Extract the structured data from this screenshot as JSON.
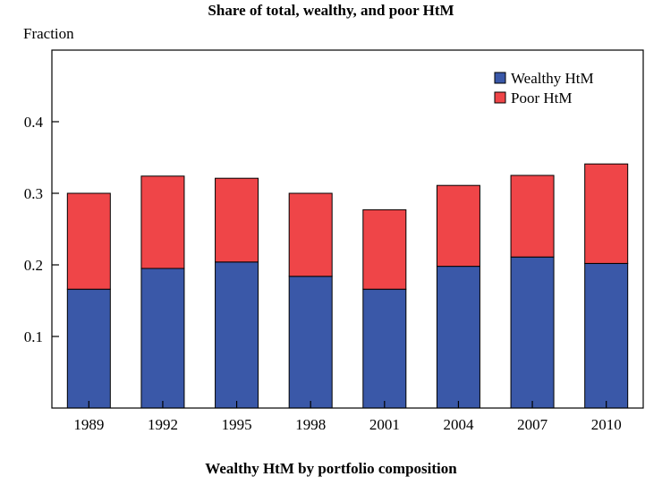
{
  "header": {
    "title": "Share of total, wealthy, and poor HtM",
    "y_axis_label": "Fraction",
    "bottom_title": "Wealthy HtM by portfolio composition"
  },
  "chart_data": {
    "type": "bar",
    "stacked": true,
    "title": "Share of total, wealthy, and poor HtM",
    "ylabel": "Fraction",
    "xlabel": "",
    "categories": [
      "1989",
      "1992",
      "1995",
      "1998",
      "2001",
      "2004",
      "2007",
      "2010"
    ],
    "series": [
      {
        "name": "Wealthy HtM",
        "color": "#3a58a8",
        "values": [
          0.166,
          0.195,
          0.204,
          0.184,
          0.166,
          0.198,
          0.211,
          0.202
        ]
      },
      {
        "name": "Poor HtM",
        "color": "#ef4548",
        "values": [
          0.134,
          0.129,
          0.117,
          0.116,
          0.111,
          0.113,
          0.114,
          0.139
        ]
      }
    ],
    "ylim": [
      0,
      0.5
    ],
    "yticks": [
      0.1,
      0.2,
      0.3,
      0.4
    ],
    "ytick_labels": [
      "0.1",
      "0.2",
      "0.3",
      "0.4"
    ],
    "grid": false,
    "legend_position": "top-right"
  }
}
